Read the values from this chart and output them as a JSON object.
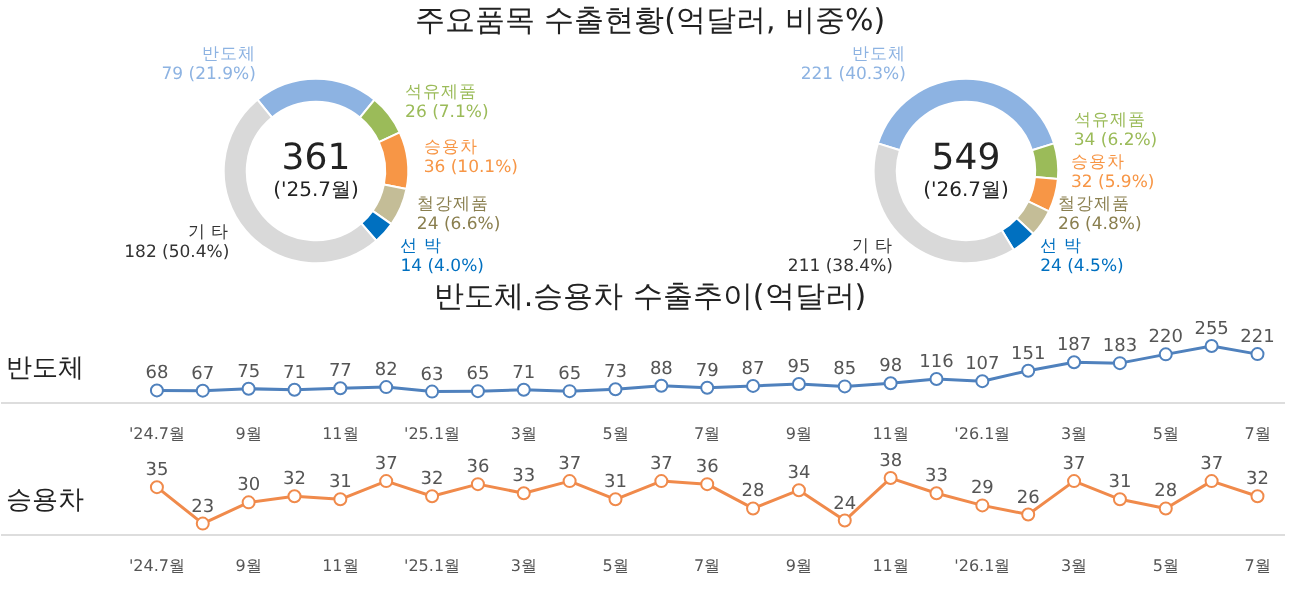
{
  "chart_data": [
    {
      "type": "donut",
      "title": "주요품목 수출현황(억달러, 비중%)",
      "categories": [
        "반도체",
        "석유제품",
        "승용차",
        "철강제품",
        "선 박",
        "기 타"
      ],
      "values": [
        79,
        26,
        36,
        24,
        14,
        182
      ],
      "colors": [
        "#8db3e2",
        "#9bbb59",
        "#f79646",
        "#c4bd97",
        "#0070c0",
        "#d9d9d9"
      ],
      "value_labels": [
        "79 (21.9%)",
        "26 (7.1%)",
        "36 (10.1%)",
        "24 (6.6%)",
        "14 (4.0%)",
        "182 (50.4%)"
      ],
      "annotations": [
        "361",
        "('25.7월)"
      ]
    },
    {
      "type": "donut",
      "categories": [
        "반도체",
        "석유제품",
        "승용차",
        "철강제품",
        "선 박",
        "기 타"
      ],
      "values": [
        221,
        34,
        32,
        26,
        24,
        211
      ],
      "colors": [
        "#8db3e2",
        "#9bbb59",
        "#f79646",
        "#c4bd97",
        "#0070c0",
        "#d9d9d9"
      ],
      "value_labels": [
        "221 (40.3%)",
        "34 (6.2%)",
        "32 (5.9%)",
        "26 (4.8%)",
        "24 (4.5%)",
        "211 (38.4%)"
      ],
      "annotations": [
        "549",
        "('26.7월)"
      ]
    },
    {
      "type": "line",
      "title": "반도체.승용차 수출추이(억달러)",
      "ylabel": "반도체",
      "categories": [
        "'24.7월",
        null,
        "9월",
        null,
        "11월",
        null,
        "'25.1월",
        null,
        "3월",
        null,
        "5월",
        null,
        "7월",
        null,
        "9월",
        null,
        "11월",
        null,
        "'26.1월",
        null,
        "3월",
        null,
        "5월",
        null,
        "7월"
      ],
      "series": [
        {
          "color": "#4f81bd",
          "values": [
            68,
            67,
            75,
            71,
            77,
            82,
            63,
            65,
            71,
            65,
            73,
            88,
            79,
            87,
            95,
            85,
            98,
            116,
            107,
            151,
            187,
            183,
            220,
            255,
            221
          ]
        }
      ],
      "marker": "circle",
      "data_labels": true
    },
    {
      "type": "line",
      "ylabel": "승용차",
      "categories": [
        "'24.7월",
        null,
        "9월",
        null,
        "11월",
        null,
        "'25.1월",
        null,
        "3월",
        null,
        "5월",
        null,
        "7월",
        null,
        "9월",
        null,
        "11월",
        null,
        "'26.1월",
        null,
        "3월",
        null,
        "5월",
        null,
        "7월"
      ],
      "series": [
        {
          "color": "#f08a4b",
          "values": [
            35,
            23,
            30,
            32,
            31,
            37,
            32,
            36,
            33,
            37,
            31,
            37,
            36,
            28,
            34,
            24,
            38,
            33,
            29,
            26,
            37,
            31,
            28,
            37,
            32
          ]
        }
      ],
      "marker": "circle",
      "data_labels": true
    }
  ]
}
